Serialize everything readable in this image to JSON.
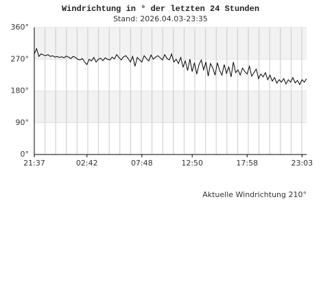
{
  "chart_data": {
    "type": "line",
    "title": "Windrichtung in ° der letzten 24 Stunden",
    "subtitle": "Stand: 2026.04.03-23:35",
    "annotation": "Aktuelle Windrichtung 210°",
    "color": "#000000",
    "ylim": [
      0,
      360
    ],
    "yticks": [
      {
        "value": 0,
        "label": "0°"
      },
      {
        "value": 90,
        "label": "90°"
      },
      {
        "value": 180,
        "label": "180°"
      },
      {
        "value": 270,
        "label": "270°"
      },
      {
        "value": 360,
        "label": "360°"
      }
    ],
    "xlim": [
      0,
      119
    ],
    "xticks": [
      {
        "value": 0,
        "label": "21:37"
      },
      {
        "value": 23,
        "label": "02:42"
      },
      {
        "value": 47,
        "label": "07:48"
      },
      {
        "value": 69,
        "label": "12:50"
      },
      {
        "value": 93,
        "label": "17:58"
      },
      {
        "value": 117,
        "label": "23:03"
      }
    ],
    "values": [
      285,
      300,
      278,
      285,
      282,
      280,
      283,
      278,
      280,
      276,
      278,
      275,
      277,
      274,
      279,
      276,
      272,
      278,
      275,
      270,
      268,
      272,
      262,
      255,
      270,
      265,
      275,
      262,
      270,
      273,
      266,
      274,
      270,
      268,
      276,
      271,
      283,
      275,
      268,
      277,
      280,
      272,
      262,
      278,
      250,
      275,
      268,
      262,
      280,
      272,
      265,
      282,
      270,
      276,
      280,
      274,
      268,
      283,
      272,
      268,
      285,
      262,
      270,
      258,
      275,
      248,
      265,
      238,
      270,
      235,
      260,
      228,
      255,
      268,
      240,
      262,
      222,
      258,
      245,
      225,
      260,
      238,
      225,
      255,
      230,
      248,
      220,
      262,
      232,
      240,
      225,
      245,
      235,
      228,
      250,
      222,
      232,
      242,
      215,
      228,
      220,
      232,
      212,
      225,
      208,
      218,
      202,
      212,
      205,
      215,
      200,
      212,
      205,
      218,
      203,
      210,
      198,
      212,
      205,
      215
    ]
  }
}
